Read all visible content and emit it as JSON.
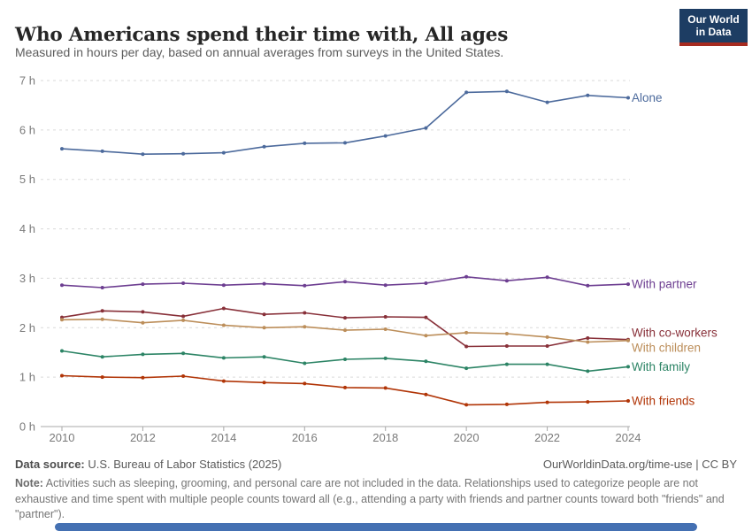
{
  "header": {
    "title": "Who Americans spend their time with, All ages",
    "subtitle": "Measured in hours per day, based on annual averages from surveys in the United States.",
    "logo": {
      "line1": "Our World",
      "line2": "in Data",
      "bg_color": "#1d3d63",
      "accent_color": "#a62b20"
    }
  },
  "chart_data": {
    "type": "line",
    "title": "Who Americans spend their time with, All ages",
    "x": [
      2010,
      2011,
      2012,
      2013,
      2014,
      2015,
      2016,
      2017,
      2018,
      2019,
      2020,
      2021,
      2022,
      2023,
      2024
    ],
    "xticks": [
      2010,
      2012,
      2014,
      2016,
      2018,
      2020,
      2022,
      2024
    ],
    "yticks": [
      0,
      1,
      2,
      3,
      4,
      5,
      6,
      7
    ],
    "ylim": [
      0,
      7
    ],
    "ytick_suffix": " h",
    "grid": "horizontal-dashed",
    "legend_position": "right-end-labels",
    "series": [
      {
        "name": "Alone",
        "color": "#4C6A9C",
        "values": [
          5.62,
          5.57,
          5.51,
          5.52,
          5.54,
          5.66,
          5.73,
          5.74,
          5.88,
          6.04,
          6.76,
          6.78,
          6.56,
          6.7,
          6.65
        ]
      },
      {
        "name": "With partner",
        "color": "#6D3E91",
        "values": [
          2.86,
          2.81,
          2.88,
          2.9,
          2.86,
          2.89,
          2.85,
          2.93,
          2.86,
          2.9,
          3.03,
          2.95,
          3.02,
          2.85,
          2.88
        ]
      },
      {
        "name": "With co-workers",
        "color": "#883039",
        "values": [
          2.21,
          2.34,
          2.32,
          2.23,
          2.39,
          2.27,
          2.3,
          2.2,
          2.22,
          2.21,
          1.62,
          1.63,
          1.63,
          1.79,
          1.76
        ]
      },
      {
        "name": "With children",
        "color": "#BC8E5A",
        "values": [
          2.16,
          2.17,
          2.1,
          2.15,
          2.05,
          2.0,
          2.02,
          1.95,
          1.97,
          1.84,
          1.9,
          1.88,
          1.81,
          1.71,
          1.74
        ]
      },
      {
        "name": "With family",
        "color": "#2C8465",
        "values": [
          1.53,
          1.41,
          1.46,
          1.48,
          1.39,
          1.41,
          1.28,
          1.36,
          1.38,
          1.32,
          1.18,
          1.26,
          1.26,
          1.12,
          1.21
        ]
      },
      {
        "name": "With friends",
        "color": "#B13507",
        "values": [
          1.03,
          1.0,
          0.99,
          1.02,
          0.92,
          0.89,
          0.87,
          0.79,
          0.78,
          0.65,
          0.44,
          0.45,
          0.49,
          0.5,
          0.52
        ]
      }
    ]
  },
  "footer": {
    "datasource_label": "Data source:",
    "datasource_value": " U.S. Bureau of Labor Statistics (2025)",
    "rights": "OurWorldinData.org/time-use | CC BY",
    "note_label": "Note:",
    "note_text": " Activities such as sleeping, grooming, and personal care are not included in the data. Relationships used to categorize people are not exhaustive and time spent with multiple people counts toward all (e.g., attending a party with friends and partner counts toward both \"friends\" and \"partner\")."
  },
  "timeline": {
    "color": "#4470b2"
  }
}
